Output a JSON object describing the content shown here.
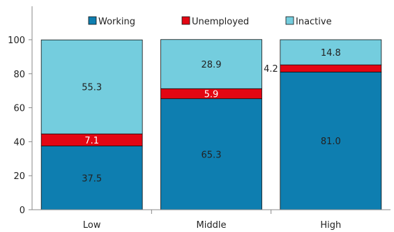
{
  "chart_data": {
    "type": "bar",
    "stacked": true,
    "categories": [
      "Low",
      "Middle",
      "High"
    ],
    "series": [
      {
        "name": "Working",
        "color": "#0E7EB0",
        "values": [
          37.5,
          65.3,
          81.0
        ],
        "labels": [
          "37.5",
          "65.3",
          "81.0"
        ]
      },
      {
        "name": "Unemployed",
        "color": "#E30613",
        "values": [
          7.1,
          5.9,
          4.2
        ],
        "labels": [
          "7.1",
          "5.9",
          "4.2"
        ]
      },
      {
        "name": "Inactive",
        "color": "#74CDDE",
        "values": [
          55.3,
          28.9,
          14.8
        ],
        "labels": [
          "55.3",
          "28.9",
          "14.8"
        ]
      }
    ],
    "yticks": [
      "0",
      "20",
      "40",
      "60",
      "80",
      "100"
    ],
    "ylim": [
      0,
      100
    ],
    "grid": false,
    "legend_position": "top"
  }
}
